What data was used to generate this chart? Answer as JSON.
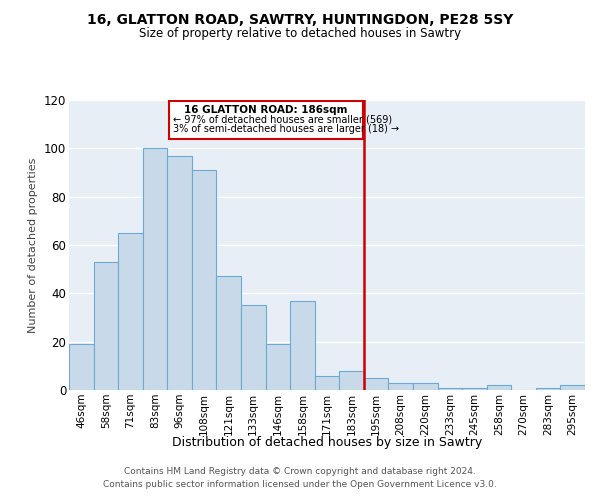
{
  "title": "16, GLATTON ROAD, SAWTRY, HUNTINGDON, PE28 5SY",
  "subtitle": "Size of property relative to detached houses in Sawtry",
  "xlabel": "Distribution of detached houses by size in Sawtry",
  "ylabel": "Number of detached properties",
  "bar_color": "#c8daea",
  "bar_edge_color": "#6aaad4",
  "categories": [
    "46sqm",
    "58sqm",
    "71sqm",
    "83sqm",
    "96sqm",
    "108sqm",
    "121sqm",
    "133sqm",
    "146sqm",
    "158sqm",
    "171sqm",
    "183sqm",
    "195sqm",
    "208sqm",
    "220sqm",
    "233sqm",
    "245sqm",
    "258sqm",
    "270sqm",
    "283sqm",
    "295sqm"
  ],
  "values": [
    19,
    53,
    65,
    100,
    97,
    91,
    47,
    35,
    19,
    37,
    6,
    8,
    5,
    3,
    3,
    1,
    1,
    2,
    0,
    1,
    2
  ],
  "marker_index": 11,
  "annotation_title": "16 GLATTON ROAD: 186sqm",
  "annotation_line1": "← 97% of detached houses are smaller (569)",
  "annotation_line2": "3% of semi-detached houses are larger (18) →",
  "vline_color": "#cc0000",
  "annotation_edge_color": "#cc0000",
  "bg_color": "#e8eef5",
  "footnote1": "Contains HM Land Registry data © Crown copyright and database right 2024.",
  "footnote2": "Contains public sector information licensed under the Open Government Licence v3.0.",
  "ylim": [
    0,
    120
  ],
  "yticks": [
    0,
    20,
    40,
    60,
    80,
    100,
    120
  ]
}
